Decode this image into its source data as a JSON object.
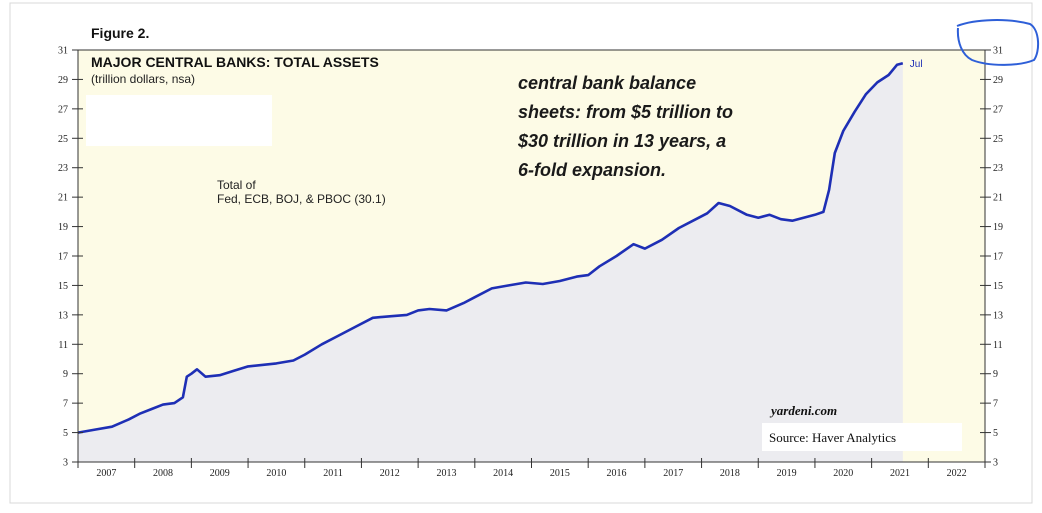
{
  "figure_label": "Figure 2.",
  "colors": {
    "plot_bg": "#fdfbe6",
    "area_fill": "#ececf0",
    "line": "#1e2fb5",
    "annotation_text": "#1a1a1a",
    "circle": "#2e5fd8"
  },
  "annotation": {
    "lines": [
      "central bank balance",
      "sheets: from $5 trillion to",
      "$30 trillion in 13 years, a",
      "6-fold expansion."
    ]
  },
  "credits": {
    "site": "yardeni.com",
    "source": "Source: Haver Analytics"
  },
  "chart_data": {
    "type": "area",
    "title": "MAJOR CENTRAL BANKS: TOTAL ASSETS",
    "subtitle": "(trillion dollars, nsa)",
    "series": [
      {
        "name": "Total of\nFed, ECB, BOJ, & PBOC (30.1)",
        "end_label": "Jul",
        "points": [
          [
            2007.0,
            5.0
          ],
          [
            2007.3,
            5.2
          ],
          [
            2007.6,
            5.4
          ],
          [
            2007.9,
            5.9
          ],
          [
            2008.1,
            6.3
          ],
          [
            2008.3,
            6.6
          ],
          [
            2008.5,
            6.9
          ],
          [
            2008.7,
            7.0
          ],
          [
            2008.85,
            7.4
          ],
          [
            2008.92,
            8.8
          ],
          [
            2009.0,
            9.0
          ],
          [
            2009.1,
            9.3
          ],
          [
            2009.25,
            8.8
          ],
          [
            2009.5,
            8.9
          ],
          [
            2009.75,
            9.2
          ],
          [
            2010.0,
            9.5
          ],
          [
            2010.5,
            9.7
          ],
          [
            2010.8,
            9.9
          ],
          [
            2011.0,
            10.3
          ],
          [
            2011.3,
            11.0
          ],
          [
            2011.6,
            11.6
          ],
          [
            2011.9,
            12.2
          ],
          [
            2012.2,
            12.8
          ],
          [
            2012.5,
            12.9
          ],
          [
            2012.8,
            13.0
          ],
          [
            2013.0,
            13.3
          ],
          [
            2013.2,
            13.4
          ],
          [
            2013.5,
            13.3
          ],
          [
            2013.8,
            13.8
          ],
          [
            2014.0,
            14.2
          ],
          [
            2014.3,
            14.8
          ],
          [
            2014.6,
            15.0
          ],
          [
            2014.9,
            15.2
          ],
          [
            2015.2,
            15.1
          ],
          [
            2015.5,
            15.3
          ],
          [
            2015.8,
            15.6
          ],
          [
            2016.0,
            15.7
          ],
          [
            2016.2,
            16.3
          ],
          [
            2016.5,
            17.0
          ],
          [
            2016.8,
            17.8
          ],
          [
            2017.0,
            17.5
          ],
          [
            2017.3,
            18.1
          ],
          [
            2017.6,
            18.9
          ],
          [
            2017.9,
            19.5
          ],
          [
            2018.1,
            19.9
          ],
          [
            2018.3,
            20.6
          ],
          [
            2018.5,
            20.4
          ],
          [
            2018.8,
            19.8
          ],
          [
            2019.0,
            19.6
          ],
          [
            2019.2,
            19.8
          ],
          [
            2019.4,
            19.5
          ],
          [
            2019.6,
            19.4
          ],
          [
            2019.8,
            19.6
          ],
          [
            2020.0,
            19.8
          ],
          [
            2020.15,
            20.0
          ],
          [
            2020.25,
            21.5
          ],
          [
            2020.35,
            24.0
          ],
          [
            2020.5,
            25.5
          ],
          [
            2020.7,
            26.8
          ],
          [
            2020.9,
            28.0
          ],
          [
            2021.1,
            28.8
          ],
          [
            2021.3,
            29.3
          ],
          [
            2021.45,
            30.0
          ],
          [
            2021.55,
            30.1
          ]
        ]
      }
    ],
    "xlim": [
      2007,
      2023
    ],
    "ylim": [
      3,
      31
    ],
    "yticks": [
      3,
      5,
      7,
      9,
      11,
      13,
      15,
      17,
      19,
      21,
      23,
      25,
      27,
      29,
      31
    ],
    "year_labels": [
      "2007",
      "2008",
      "2009",
      "2010",
      "2011",
      "2012",
      "2013",
      "2014",
      "2015",
      "2016",
      "2017",
      "2018",
      "2019",
      "2020",
      "2021",
      "2022"
    ],
    "grid": false,
    "legend": "inline, upper-left"
  }
}
